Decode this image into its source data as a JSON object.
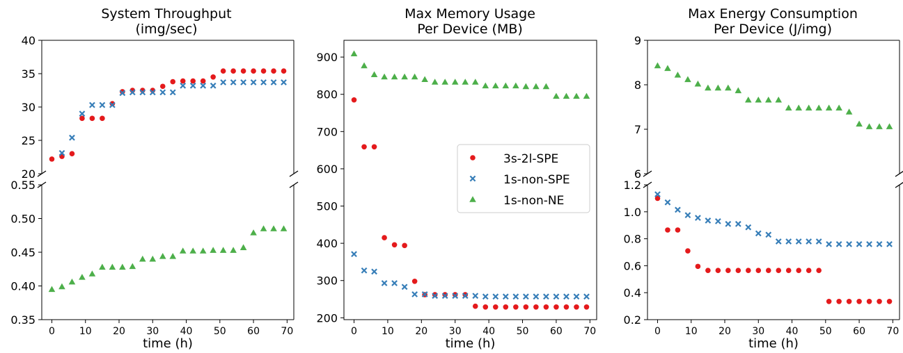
{
  "legend": [
    {
      "name": "3s-2l-SPE",
      "marker": "circle",
      "color": "#e41a1c"
    },
    {
      "name": "1s-non-SPE",
      "marker": "x",
      "color": "#377eb8"
    },
    {
      "name": "1s-non-NE",
      "marker": "triangle",
      "color": "#4daf4a"
    }
  ],
  "chart_data": [
    {
      "type": "scatter",
      "title": "System Throughput\n(img/sec)",
      "xlabel": "time (h)",
      "ylabel": "",
      "xlim": [
        -3,
        72
      ],
      "xticks": [
        0,
        10,
        20,
        30,
        40,
        50,
        60,
        70
      ],
      "broken_y_axis": true,
      "top_ylim": [
        20,
        40
      ],
      "top_yticks": [
        20,
        25,
        30,
        35,
        40
      ],
      "bottom_ylim": [
        0.35,
        0.55
      ],
      "bottom_yticks": [
        0.35,
        0.4,
        0.45,
        0.5,
        0.55
      ],
      "grid": false,
      "series": [
        {
          "name": "3s-2l-SPE",
          "x": [
            0,
            3,
            6,
            9,
            12,
            15,
            18,
            21,
            24,
            27,
            30,
            33,
            36,
            39,
            42,
            45,
            48,
            51,
            54,
            57,
            60,
            63,
            66,
            69
          ],
          "y": [
            22.2,
            22.6,
            23.0,
            28.3,
            28.3,
            28.3,
            30.5,
            32.3,
            32.5,
            32.5,
            32.5,
            33.1,
            33.8,
            33.9,
            33.9,
            33.9,
            34.5,
            35.4,
            35.4,
            35.4,
            35.4,
            35.4,
            35.4,
            35.4
          ]
        },
        {
          "name": "1s-non-SPE",
          "x": [
            3,
            6,
            9,
            12,
            15,
            18,
            21,
            24,
            27,
            30,
            33,
            36,
            39,
            42,
            45,
            48,
            51,
            54,
            57,
            60,
            63,
            66,
            69
          ],
          "y": [
            23.1,
            25.4,
            29.0,
            30.3,
            30.3,
            30.3,
            32.1,
            32.2,
            32.2,
            32.2,
            32.2,
            32.2,
            33.2,
            33.2,
            33.2,
            33.2,
            33.7,
            33.7,
            33.7,
            33.7,
            33.7,
            33.7,
            33.7
          ]
        },
        {
          "name": "1s-non-NE",
          "x": [
            0,
            3,
            6,
            9,
            12,
            15,
            18,
            21,
            24,
            27,
            30,
            33,
            36,
            39,
            42,
            45,
            48,
            51,
            54,
            57,
            60,
            63,
            66,
            69
          ],
          "y": [
            0.395,
            0.399,
            0.406,
            0.413,
            0.418,
            0.428,
            0.428,
            0.428,
            0.429,
            0.44,
            0.44,
            0.444,
            0.444,
            0.452,
            0.452,
            0.452,
            0.453,
            0.453,
            0.453,
            0.457,
            0.479,
            0.485,
            0.485,
            0.485
          ]
        }
      ]
    },
    {
      "type": "scatter",
      "title": "Max Memory Usage\nPer Device (MB)",
      "xlabel": "time (h)",
      "ylabel": "",
      "xlim": [
        -3,
        72
      ],
      "xticks": [
        0,
        10,
        20,
        30,
        40,
        50,
        60,
        70
      ],
      "ylim": [
        195,
        945
      ],
      "yticks": [
        200,
        300,
        400,
        500,
        600,
        700,
        800,
        900
      ],
      "grid": false,
      "legend_position": "center-right",
      "series": [
        {
          "name": "3s-2l-SPE",
          "x": [
            0,
            3,
            6,
            9,
            12,
            15,
            18,
            21,
            24,
            27,
            30,
            33,
            36,
            39,
            42,
            45,
            48,
            51,
            54,
            57,
            60,
            63,
            66,
            69
          ],
          "y": [
            785,
            659,
            659,
            415,
            396,
            394,
            298,
            262,
            262,
            262,
            262,
            262,
            231,
            229,
            229,
            229,
            229,
            229,
            229,
            229,
            229,
            229,
            229,
            229
          ]
        },
        {
          "name": "1s-non-SPE",
          "x": [
            0,
            3,
            6,
            9,
            12,
            15,
            18,
            21,
            24,
            27,
            30,
            33,
            36,
            39,
            42,
            45,
            48,
            51,
            54,
            57,
            60,
            63,
            66,
            69
          ],
          "y": [
            371,
            327,
            324,
            293,
            293,
            283,
            263,
            263,
            259,
            259,
            259,
            259,
            259,
            257,
            257,
            257,
            257,
            257,
            257,
            257,
            257,
            257,
            257,
            257
          ]
        },
        {
          "name": "1s-non-NE",
          "x": [
            0,
            3,
            6,
            9,
            12,
            15,
            18,
            21,
            24,
            27,
            30,
            33,
            36,
            39,
            42,
            45,
            48,
            51,
            54,
            57,
            60,
            63,
            66,
            69
          ],
          "y": [
            909,
            877,
            853,
            847,
            847,
            847,
            847,
            840,
            833,
            833,
            833,
            833,
            833,
            823,
            823,
            823,
            823,
            821,
            821,
            821,
            795,
            795,
            795,
            795
          ]
        }
      ]
    },
    {
      "type": "scatter",
      "title": "Max Energy Consumption\nPer Device (J/img)",
      "xlabel": "time (h)",
      "ylabel": "",
      "xlim": [
        -3,
        72
      ],
      "xticks": [
        0,
        10,
        20,
        30,
        40,
        50,
        60,
        70
      ],
      "broken_y_axis": true,
      "top_ylim": [
        6,
        9
      ],
      "top_yticks": [
        6,
        7,
        8,
        9
      ],
      "bottom_ylim": [
        0.2,
        1.2
      ],
      "bottom_yticks": [
        0.2,
        0.4,
        0.6,
        0.8,
        1.0,
        1.2
      ],
      "grid": false,
      "series": [
        {
          "name": "3s-2l-SPE",
          "x": [
            0,
            3,
            6,
            9,
            12,
            15,
            18,
            21,
            24,
            27,
            30,
            33,
            36,
            39,
            42,
            45,
            48,
            51,
            54,
            57,
            60,
            63,
            66,
            69
          ],
          "y": [
            1.1,
            0.865,
            0.865,
            0.71,
            0.595,
            0.565,
            0.565,
            0.565,
            0.565,
            0.565,
            0.565,
            0.565,
            0.565,
            0.565,
            0.565,
            0.565,
            0.565,
            0.335,
            0.335,
            0.335,
            0.335,
            0.335,
            0.335,
            0.335
          ]
        },
        {
          "name": "1s-non-SPE",
          "x": [
            0,
            3,
            6,
            9,
            12,
            15,
            18,
            21,
            24,
            27,
            30,
            33,
            36,
            39,
            42,
            45,
            48,
            51,
            54,
            57,
            60,
            63,
            66,
            69
          ],
          "y": [
            1.13,
            1.07,
            1.015,
            0.975,
            0.955,
            0.935,
            0.93,
            0.91,
            0.91,
            0.885,
            0.84,
            0.83,
            0.78,
            0.78,
            0.78,
            0.78,
            0.78,
            0.76,
            0.76,
            0.76,
            0.76,
            0.76,
            0.76,
            0.76
          ]
        },
        {
          "name": "1s-non-NE",
          "x": [
            0,
            3,
            6,
            9,
            12,
            15,
            18,
            21,
            24,
            27,
            30,
            33,
            36,
            39,
            42,
            45,
            48,
            51,
            54,
            57,
            60,
            63,
            66,
            69
          ],
          "y": [
            8.43,
            8.37,
            8.22,
            8.12,
            8.02,
            7.93,
            7.93,
            7.93,
            7.87,
            7.66,
            7.66,
            7.66,
            7.66,
            7.48,
            7.48,
            7.48,
            7.48,
            7.48,
            7.48,
            7.39,
            7.12,
            7.06,
            7.06,
            7.06
          ]
        }
      ]
    }
  ]
}
